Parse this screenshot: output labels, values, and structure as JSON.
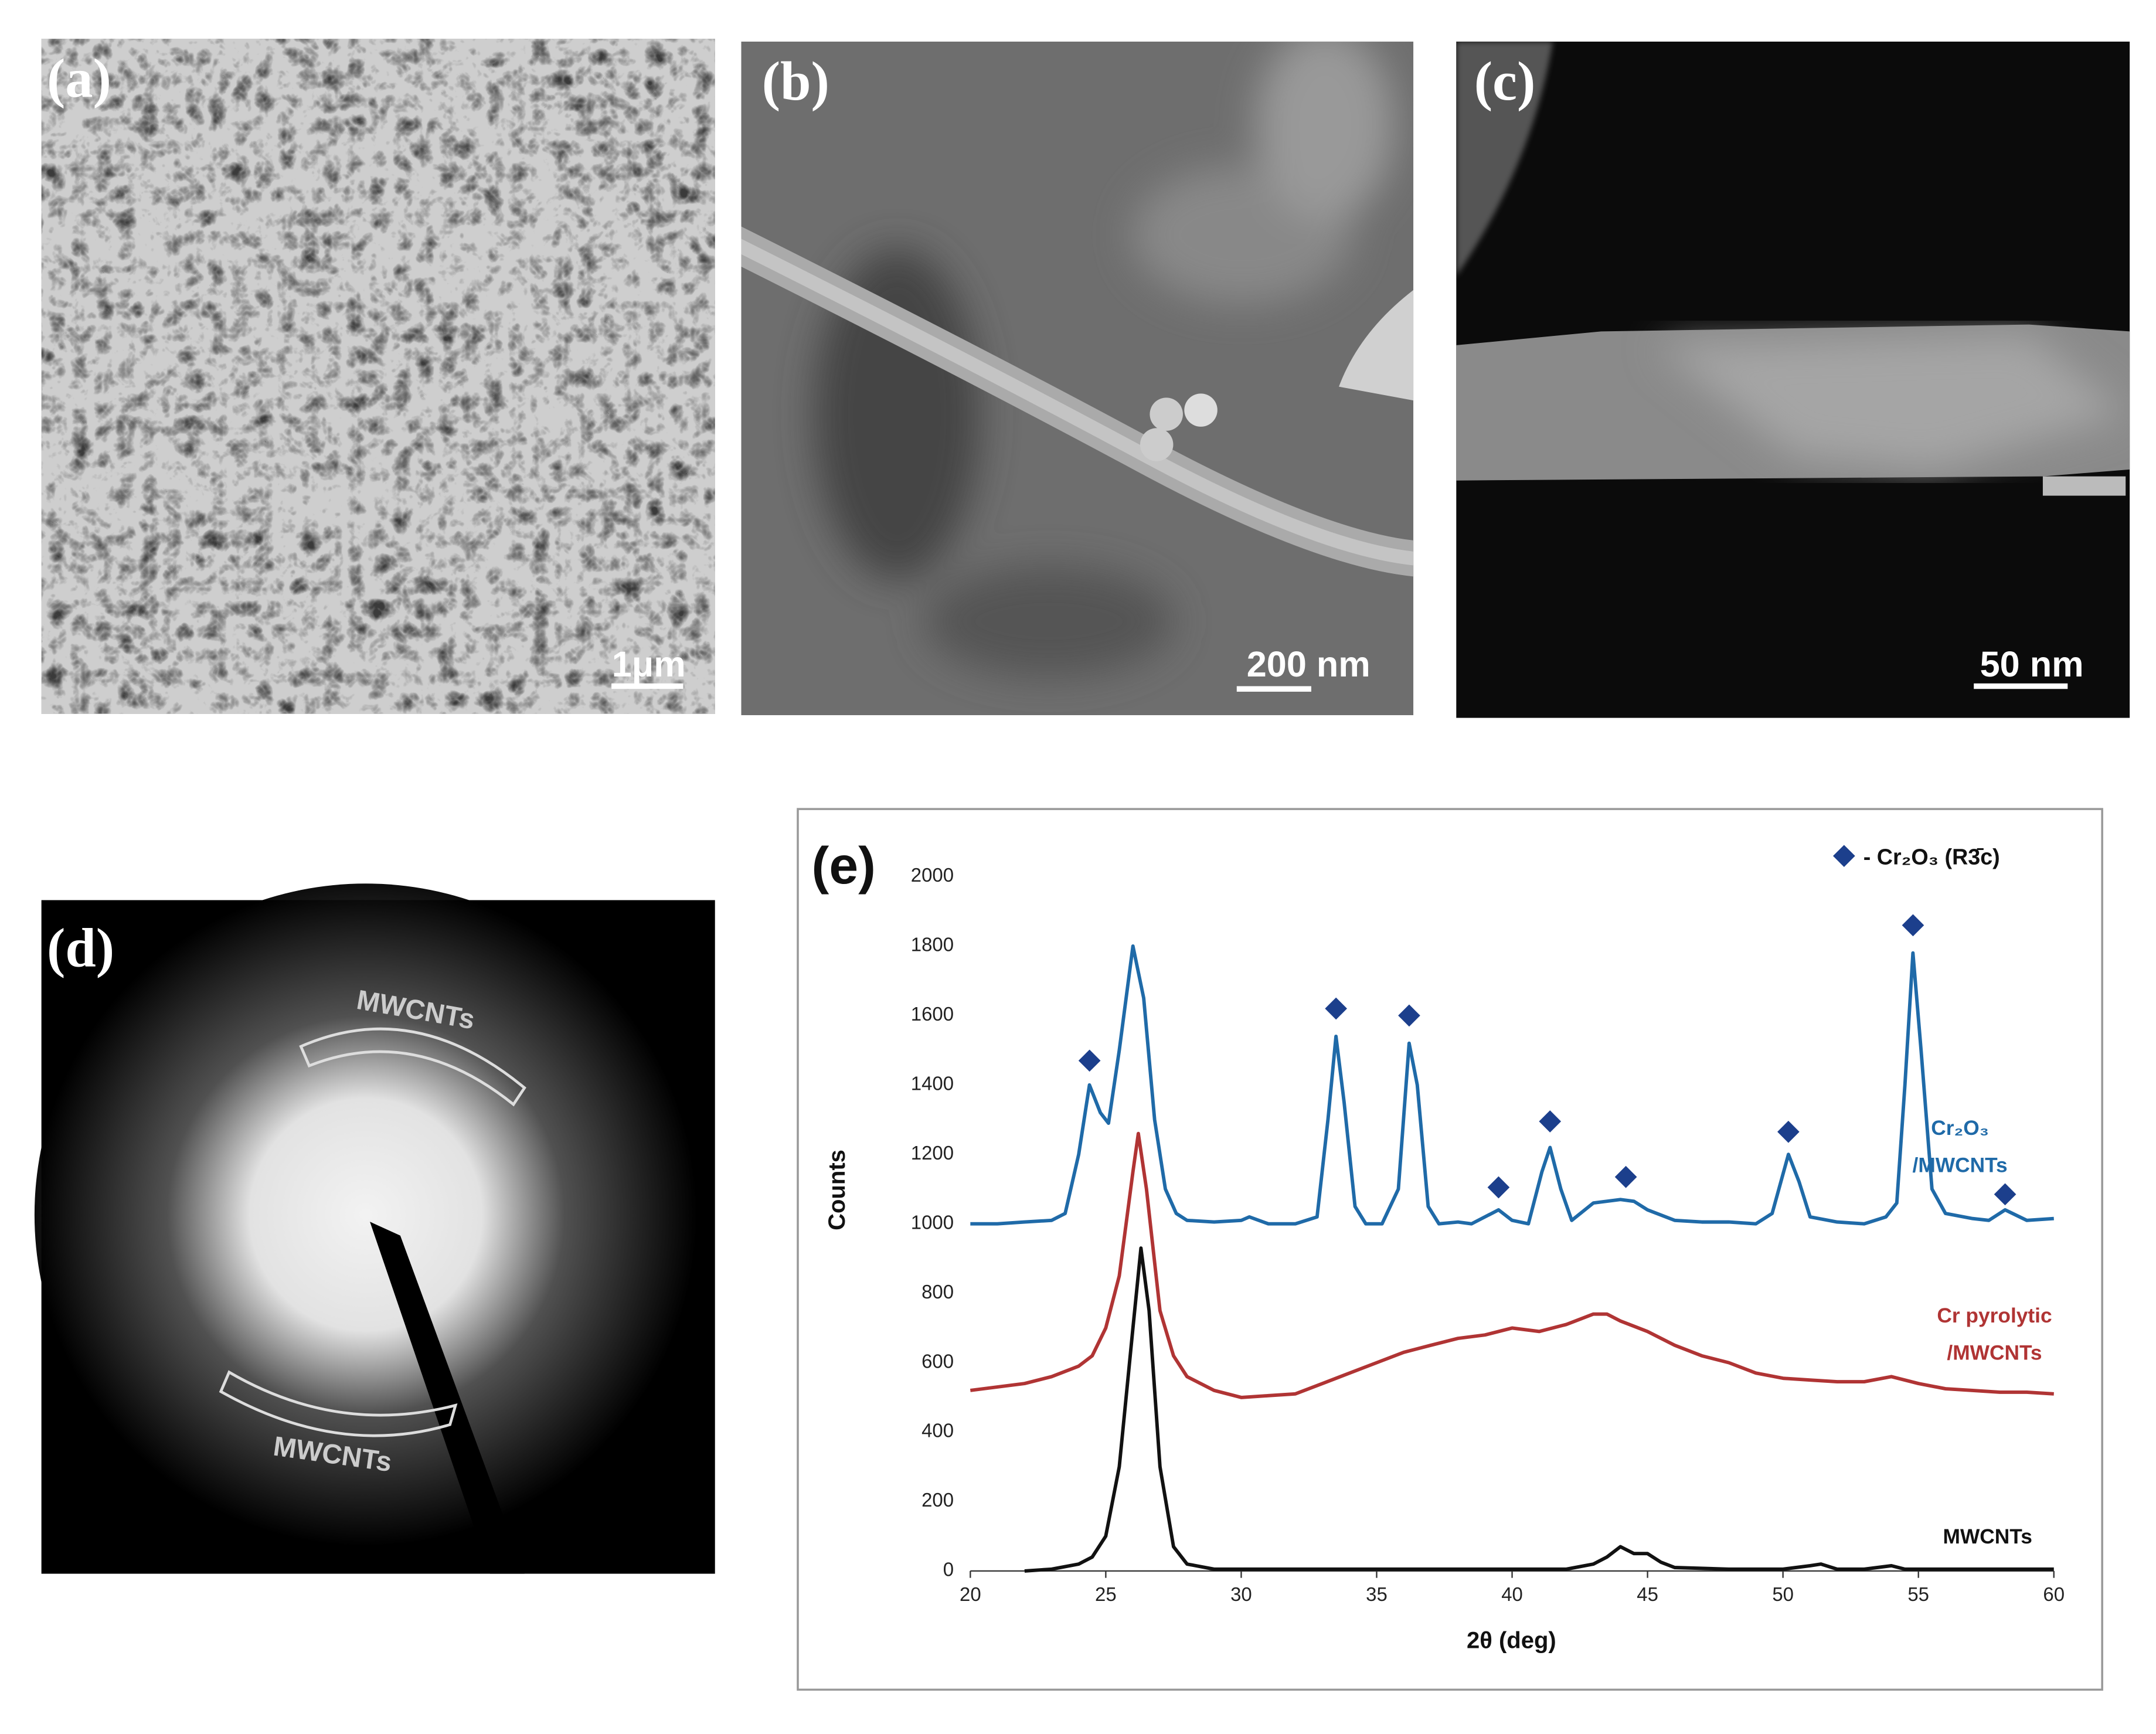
{
  "panels": [
    {
      "label": "(a)",
      "scale_bar": "1μm"
    },
    {
      "label": "(b)",
      "scale_bar": "200 nm"
    },
    {
      "label": "(c)",
      "scale_bar": "50 nm"
    },
    {
      "label": "(d)",
      "annotations": [
        "MWCNTs",
        "MWCNTs"
      ]
    }
  ],
  "chart_data": {
    "type": "line",
    "panel_label": "(e)",
    "xlabel": "2θ (deg)",
    "ylabel": "Counts",
    "xlim": [
      20,
      60
    ],
    "ylim": [
      0,
      2000
    ],
    "xticks": [
      20,
      25,
      30,
      35,
      40,
      45,
      50,
      55,
      60
    ],
    "yticks": [
      0,
      200,
      400,
      600,
      800,
      1000,
      1200,
      1400,
      1600,
      1800,
      2000
    ],
    "series": [
      {
        "name": [
          "Cr₂O₃",
          "/MWCNTs"
        ],
        "color": "#1f6aa8",
        "x": [
          20,
          21,
          22,
          23,
          23.5,
          24,
          24.4,
          24.8,
          25.1,
          25.5,
          26,
          26.4,
          26.8,
          27.2,
          27.6,
          28,
          29,
          30,
          30.3,
          31,
          32,
          32.8,
          33.2,
          33.5,
          33.8,
          34.2,
          34.6,
          35.2,
          35.8,
          36.2,
          36.5,
          36.9,
          37.3,
          38,
          38.5,
          39.5,
          40,
          40.6,
          41.1,
          41.4,
          41.8,
          42.2,
          43,
          44,
          44.5,
          45,
          46,
          47,
          48,
          49,
          49.6,
          50.2,
          50.6,
          51,
          52,
          53,
          53.8,
          54.2,
          54.5,
          54.8,
          55.1,
          55.5,
          56,
          57,
          57.6,
          58.2,
          59,
          60
        ],
        "values": [
          1000,
          1000,
          1005,
          1010,
          1030,
          1200,
          1400,
          1320,
          1290,
          1500,
          1800,
          1650,
          1300,
          1100,
          1030,
          1010,
          1005,
          1010,
          1020,
          1000,
          1000,
          1020,
          1300,
          1540,
          1350,
          1050,
          1000,
          1000,
          1100,
          1520,
          1400,
          1050,
          1000,
          1005,
          1000,
          1040,
          1010,
          1000,
          1150,
          1220,
          1100,
          1010,
          1060,
          1070,
          1065,
          1040,
          1010,
          1005,
          1005,
          1000,
          1030,
          1200,
          1120,
          1020,
          1005,
          1000,
          1020,
          1060,
          1400,
          1780,
          1500,
          1100,
          1030,
          1015,
          1010,
          1040,
          1010,
          1015
        ]
      },
      {
        "name": [
          "Cr pyrolytic",
          "/MWCNTs"
        ],
        "color": "#b03434",
        "x": [
          20,
          21,
          22,
          23,
          24,
          24.5,
          25,
          25.5,
          26,
          26.2,
          26.5,
          27,
          27.5,
          28,
          29,
          30,
          31,
          32,
          33,
          34,
          35,
          36,
          37,
          38,
          39,
          40,
          41,
          42,
          43,
          43.5,
          44,
          45,
          46,
          47,
          48,
          49,
          50,
          51,
          52,
          53,
          54,
          55,
          56,
          57,
          58,
          59,
          60
        ],
        "values": [
          520,
          530,
          540,
          560,
          590,
          620,
          700,
          850,
          1150,
          1260,
          1100,
          750,
          620,
          560,
          520,
          500,
          505,
          510,
          540,
          570,
          600,
          630,
          650,
          670,
          680,
          700,
          690,
          710,
          740,
          740,
          720,
          690,
          650,
          620,
          600,
          570,
          555,
          550,
          545,
          545,
          560,
          540,
          525,
          520,
          515,
          515,
          510
        ]
      },
      {
        "name": [
          "MWCNTs"
        ],
        "color": "#111111",
        "x": [
          22,
          23,
          24,
          24.5,
          25,
          25.5,
          26,
          26.3,
          26.6,
          27,
          27.5,
          28,
          29,
          30,
          35,
          40,
          42,
          43,
          43.5,
          44,
          44.5,
          45,
          45.5,
          46,
          48,
          50,
          51,
          51.4,
          52,
          53,
          54,
          54.5,
          56,
          58,
          60
        ],
        "values": [
          0,
          5,
          20,
          40,
          100,
          300,
          700,
          930,
          750,
          300,
          70,
          20,
          5,
          5,
          5,
          5,
          5,
          20,
          40,
          70,
          50,
          50,
          25,
          10,
          5,
          5,
          15,
          20,
          5,
          5,
          15,
          5,
          5,
          5,
          5
        ]
      }
    ],
    "markers": {
      "label": "- Cr₂O₃ (R3̄c)",
      "color": "#1c3f8c",
      "x": [
        24.4,
        33.5,
        36.2,
        39.5,
        41.4,
        44.2,
        50.2,
        54.8,
        58.2
      ],
      "y": [
        1470,
        1620,
        1600,
        1105,
        1295,
        1135,
        1265,
        1860,
        1085
      ]
    }
  }
}
